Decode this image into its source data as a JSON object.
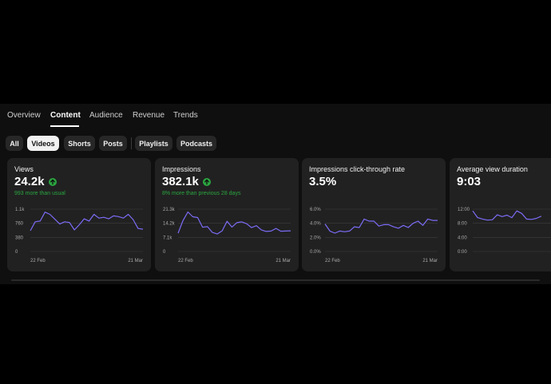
{
  "tabs": [
    {
      "label": "Overview",
      "active": false
    },
    {
      "label": "Content",
      "active": true
    },
    {
      "label": "Audience",
      "active": false
    },
    {
      "label": "Revenue",
      "active": false
    },
    {
      "label": "Trends",
      "active": false
    }
  ],
  "filters": [
    {
      "label": "All",
      "active": false
    },
    {
      "label": "Videos",
      "active": true
    },
    {
      "label": "Shorts",
      "active": false
    },
    {
      "label": "Posts",
      "active": false
    },
    {
      "label": "Playlists",
      "active": false
    },
    {
      "label": "Podcasts",
      "active": false
    }
  ],
  "colors": {
    "line": "#7b6cf6",
    "positive": "#2ba640",
    "card_bg": "#212121",
    "grid": "#3d3d3d"
  },
  "cards": [
    {
      "title": "Views",
      "value": "24.2k",
      "trend_icon": "arrow-up-circle-icon",
      "subtitle": "993 more than usual",
      "y_ticks": [
        "1.1k",
        "760",
        "380",
        "0"
      ],
      "x_labels": [
        "22 Feb",
        "21 Mar"
      ],
      "chart_data": {
        "type": "line",
        "ylim": [
          0,
          1140
        ],
        "values": [
          560,
          800,
          820,
          1060,
          1000,
          870,
          740,
          800,
          780,
          580,
          720,
          880,
          820,
          1000,
          900,
          920,
          880,
          960,
          940,
          900,
          1000,
          860,
          620,
          600
        ]
      }
    },
    {
      "title": "Impressions",
      "value": "382.1k",
      "trend_icon": "arrow-up-circle-icon",
      "subtitle": "8% more than previous 28 days",
      "y_ticks": [
        "21.3k",
        "14.2k",
        "7.1k",
        "0"
      ],
      "x_labels": [
        "22 Feb",
        "21 Mar"
      ],
      "chart_data": {
        "type": "line",
        "ylim": [
          0,
          21300
        ],
        "values": [
          9200,
          15500,
          19900,
          17500,
          17100,
          12200,
          12500,
          9600,
          8800,
          10400,
          15200,
          12300,
          14500,
          14900,
          14000,
          12000,
          13000,
          10900,
          10100,
          10300,
          11600,
          10200,
          10300,
          10400
        ]
      }
    },
    {
      "title": "Impressions click-through rate",
      "value": "3.5%",
      "subtitle": "",
      "y_ticks": [
        "6.0%",
        "4.0%",
        "2.0%",
        "0.0%"
      ],
      "x_labels": [
        "22 Feb",
        "21 Mar"
      ],
      "chart_data": {
        "type": "line",
        "ylim": [
          0,
          6.0
        ],
        "values": [
          3.9,
          2.9,
          2.6,
          2.9,
          2.8,
          2.9,
          3.5,
          3.4,
          4.6,
          4.3,
          4.3,
          3.6,
          3.8,
          3.8,
          3.5,
          3.3,
          3.7,
          3.4,
          4.0,
          4.3,
          3.7,
          4.6,
          4.4,
          4.4
        ]
      }
    },
    {
      "title": "Average view duration",
      "value": "9:03",
      "subtitle": "",
      "y_ticks": [
        "12:00",
        "8:00",
        "4:00",
        "0:00"
      ],
      "x_labels": [],
      "chart_data": {
        "type": "line",
        "ylim": [
          0,
          12
        ],
        "values": [
          11.5,
          9.6,
          9.2,
          8.9,
          9.0,
          10.4,
          9.9,
          10.3,
          9.6,
          11.5,
          10.8,
          9.2,
          9.1,
          9.4,
          10.0
        ]
      }
    }
  ]
}
